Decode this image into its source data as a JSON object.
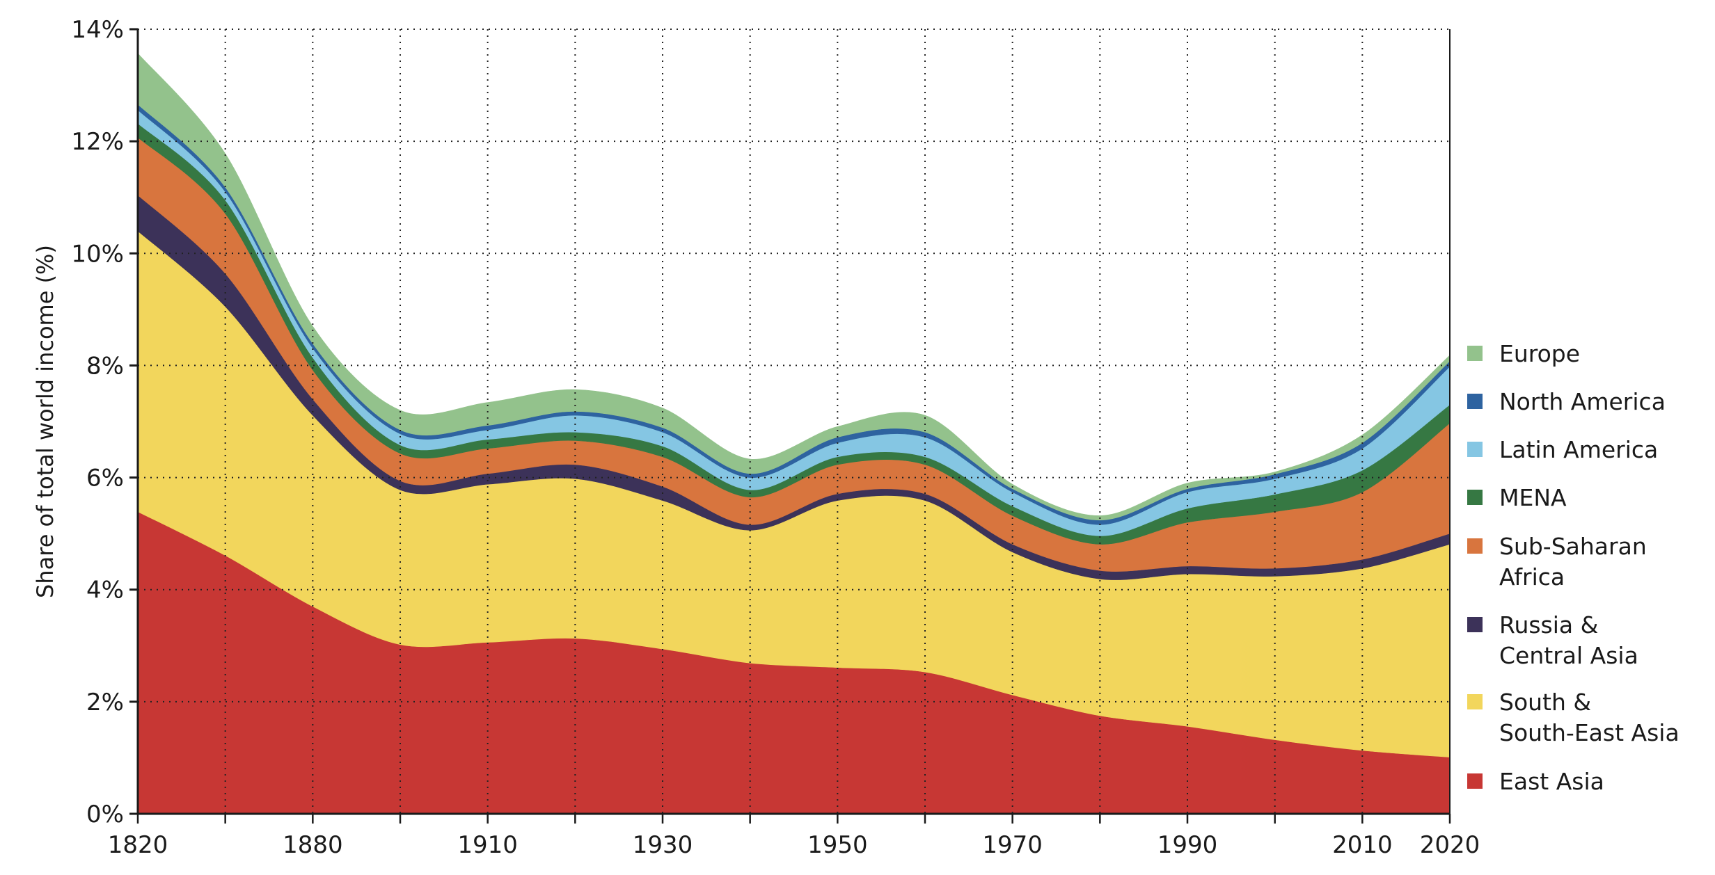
{
  "chart_data": {
    "type": "area",
    "stacked": true,
    "title": "",
    "xlabel": "",
    "ylabel": "Share of total world income (%)",
    "ylim": [
      0,
      14
    ],
    "y_ticks": [
      0,
      2,
      4,
      6,
      8,
      10,
      12,
      14
    ],
    "y_tick_labels": [
      "0%",
      "2%",
      "4%",
      "6%",
      "8%",
      "10%",
      "12%",
      "14%"
    ],
    "x": [
      "1820",
      "1850",
      "1880",
      "1900",
      "1910",
      "1920",
      "1930",
      "1940",
      "1950",
      "1960",
      "1970",
      "1980",
      "1990",
      "2000",
      "2010",
      "2020"
    ],
    "x_tick_labels": [
      "1820",
      "",
      "1880",
      "",
      "1910",
      "",
      "1930",
      "",
      "1950",
      "",
      "1970",
      "",
      "1990",
      "",
      "2010",
      "2020"
    ],
    "grid": true,
    "legend_position": "right",
    "series": [
      {
        "name": "East Asia",
        "label": "East Asia",
        "color": "#c73734",
        "values": [
          5.39,
          4.61,
          3.7,
          3.02,
          3.06,
          3.13,
          2.94,
          2.69,
          2.61,
          2.53,
          2.12,
          1.75,
          1.56,
          1.32,
          1.13,
          1.01
        ]
      },
      {
        "name": "South & South-East Asia",
        "label": "South &\nSouth-East Asia",
        "color": "#f2d65c",
        "values": [
          5.01,
          4.44,
          3.41,
          2.76,
          2.82,
          2.85,
          2.65,
          2.37,
          2.98,
          3.06,
          2.55,
          2.44,
          2.72,
          2.92,
          3.25,
          3.8
        ]
      },
      {
        "name": "Russia & Central Asia",
        "label": "Russia &\nCentral Asia",
        "color": "#3c3259",
        "values": [
          0.64,
          0.59,
          0.29,
          0.16,
          0.19,
          0.25,
          0.25,
          0.1,
          0.12,
          0.12,
          0.14,
          0.15,
          0.14,
          0.14,
          0.16,
          0.19
        ]
      },
      {
        "name": "Sub-Saharan Africa",
        "label": "Sub-Saharan\nAfrica",
        "color": "#d8753e",
        "values": [
          1.03,
          1.07,
          0.52,
          0.49,
          0.45,
          0.43,
          0.53,
          0.49,
          0.52,
          0.52,
          0.51,
          0.47,
          0.78,
          1.01,
          1.2,
          1.97
        ]
      },
      {
        "name": "MENA",
        "label": "MENA",
        "color": "#367843",
        "values": [
          0.25,
          0.24,
          0.22,
          0.15,
          0.16,
          0.15,
          0.19,
          0.13,
          0.14,
          0.14,
          0.17,
          0.15,
          0.25,
          0.31,
          0.39,
          0.33
        ]
      },
      {
        "name": "Latin America",
        "label": "Latin America",
        "color": "#85c6e3",
        "values": [
          0.24,
          0.15,
          0.17,
          0.2,
          0.17,
          0.3,
          0.25,
          0.22,
          0.25,
          0.35,
          0.25,
          0.2,
          0.29,
          0.28,
          0.39,
          0.68
        ]
      },
      {
        "name": "North America",
        "label": "North America",
        "color": "#2e63a0",
        "values": [
          0.1,
          0.08,
          0.08,
          0.07,
          0.08,
          0.07,
          0.08,
          0.07,
          0.1,
          0.09,
          0.06,
          0.08,
          0.06,
          0.08,
          0.1,
          0.1
        ]
      },
      {
        "name": "Europe",
        "label": "Europe",
        "color": "#93c28c",
        "values": [
          0.91,
          0.6,
          0.31,
          0.35,
          0.41,
          0.39,
          0.35,
          0.26,
          0.19,
          0.3,
          0.08,
          0.08,
          0.1,
          0.04,
          0.14,
          0.1
        ]
      }
    ],
    "legend_order": [
      "Europe",
      "North America",
      "Latin America",
      "MENA",
      "Sub-Saharan Africa",
      "Russia & Central Asia",
      "South & South-East Asia",
      "East Asia"
    ]
  }
}
